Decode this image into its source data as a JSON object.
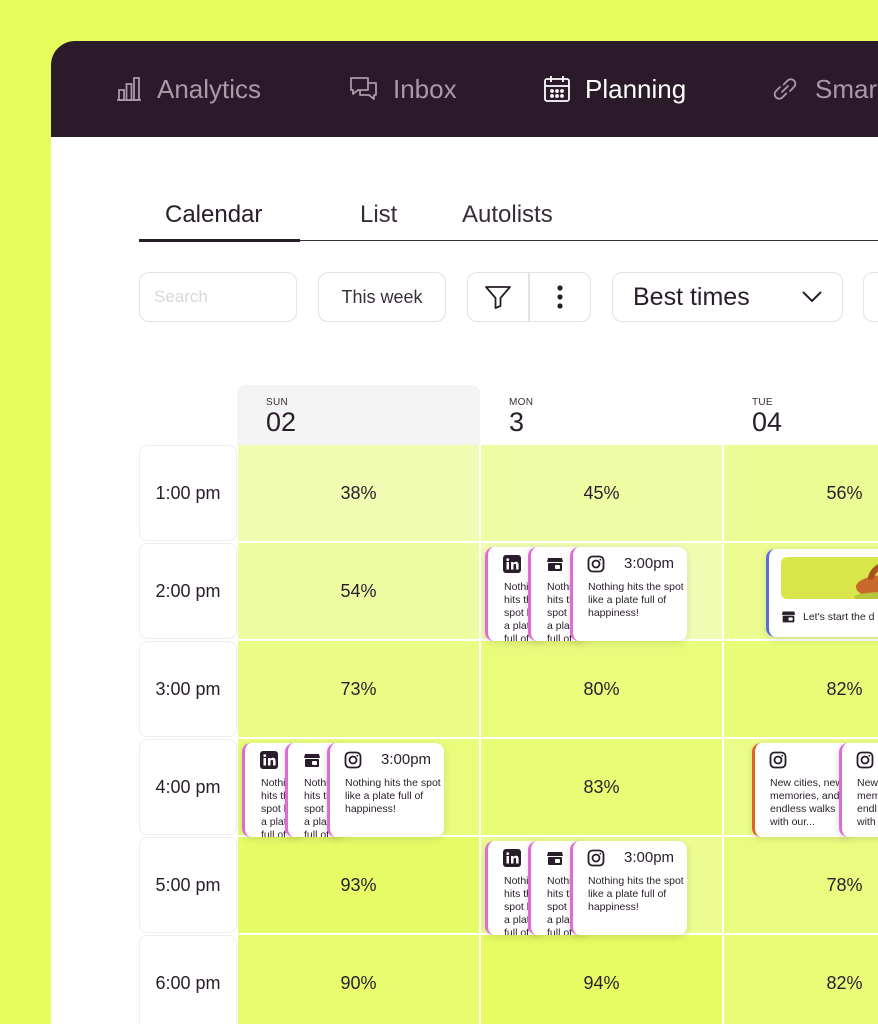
{
  "nav": {
    "items": [
      {
        "label": "Analytics",
        "icon": "bar-chart-icon",
        "active": false
      },
      {
        "label": "Inbox",
        "icon": "chat-icon",
        "active": false
      },
      {
        "label": "Planning",
        "icon": "calendar-icon",
        "active": true
      },
      {
        "label": "Smar",
        "icon": "link-icon",
        "active": false
      }
    ]
  },
  "subtabs": [
    "Calendar",
    "List",
    "Autolists"
  ],
  "toolbar": {
    "search_placeholder": "Search",
    "range_label": "This week",
    "filter_icon": "filter-icon",
    "more_icon": "more-vertical-icon",
    "dropdown_label": "Best times",
    "dropdown_icon": "chevron-down-icon"
  },
  "days": [
    {
      "name": "SUN",
      "num": "02"
    },
    {
      "name": "MON",
      "num": "3"
    },
    {
      "name": "TUE",
      "num": "04"
    }
  ],
  "times": [
    "1:00 pm",
    "2:00 pm",
    "3:00 pm",
    "4:00 pm",
    "5:00 pm",
    "6:00 pm"
  ],
  "scores": [
    [
      "38%",
      "45%",
      "56%"
    ],
    [
      "54%",
      "",
      ""
    ],
    [
      "73%",
      "80%",
      "82%"
    ],
    [
      "",
      "83%",
      ""
    ],
    [
      "93%",
      "",
      "78%"
    ],
    [
      "90%",
      "94%",
      "82%"
    ]
  ],
  "posts": {
    "time": "3:00pm",
    "text": "Nothing hits the spot like a plate full of happiness!",
    "preview_text": "Let's start the d",
    "ig_text": "New cities, new memories, and endless walks with our...",
    "ig_text2": "New memo endl with"
  },
  "colors": {
    "background": "#e6fc5a",
    "nav_bg": "#2b1a2a",
    "heat_light": "#f1fcb3",
    "heat_mid": "#ecfc8c",
    "heat_high": "#e6fc66",
    "card_border_pink": "#e06bd4",
    "card_border_blue": "#5b67e8",
    "card_border_orange": "#e0632a"
  }
}
